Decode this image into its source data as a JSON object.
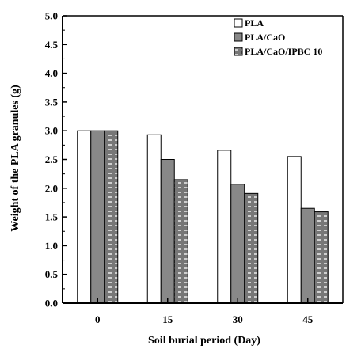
{
  "chart_data": {
    "type": "bar",
    "title": "",
    "xlabel": "Soil burial period (Day)",
    "ylabel": "Weight of the PLA granules (g)",
    "categories": [
      "0",
      "15",
      "30",
      "45"
    ],
    "ylim": [
      0,
      5.0
    ],
    "yticks": [
      "0.0",
      "0.5",
      "1.0",
      "1.5",
      "2.0",
      "2.5",
      "3.0",
      "3.5",
      "4.0",
      "4.5",
      "5.0"
    ],
    "grid": false,
    "legend_position": "top-right",
    "series": [
      {
        "name": "PLA",
        "values": [
          3.0,
          2.93,
          2.66,
          2.55
        ],
        "color": "#ffffff",
        "pattern": "none"
      },
      {
        "name": "PLA/CaO",
        "values": [
          3.0,
          2.5,
          2.07,
          1.65
        ],
        "color": "#888888",
        "pattern": "none"
      },
      {
        "name": "PLA/CaO/IPBC 10",
        "values": [
          3.0,
          2.15,
          1.91,
          1.59
        ],
        "color": "#777777",
        "pattern": "white-dashes"
      }
    ]
  }
}
